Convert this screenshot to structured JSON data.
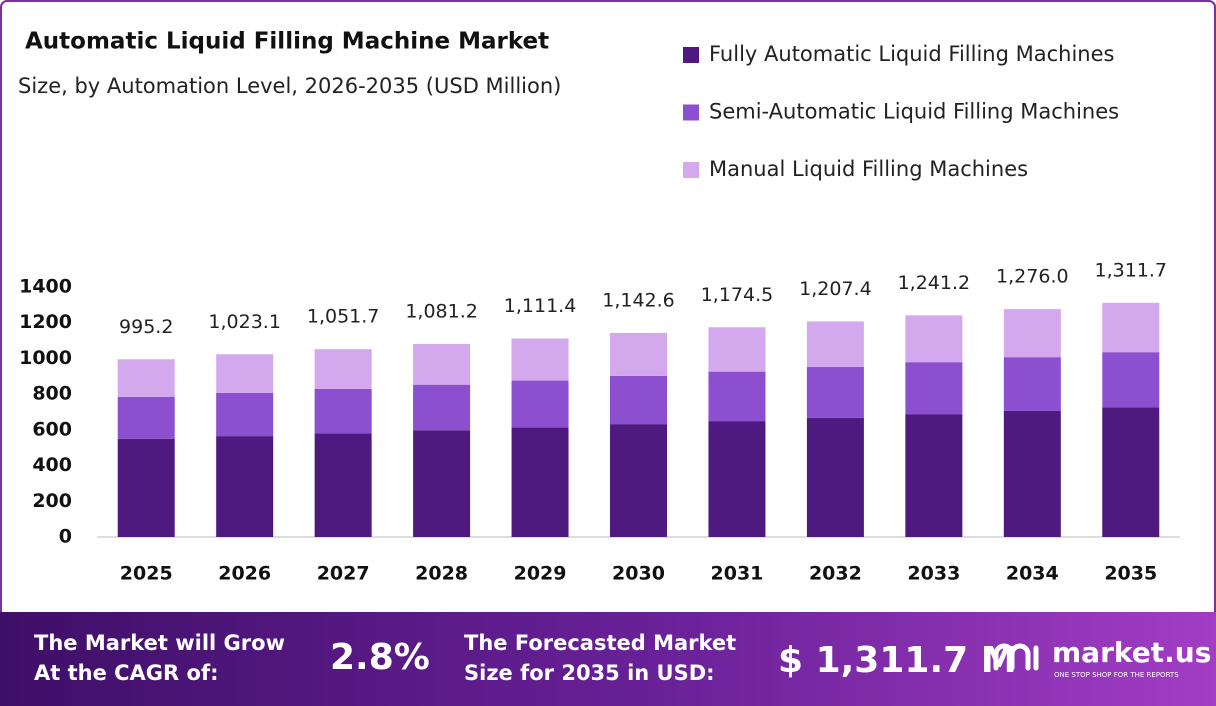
{
  "chart_data": {
    "type": "stacked-bar",
    "title": "Automatic Liquid Filling Machine Market",
    "subtitle": "Size, by Automation Level, 2026-2035 (USD Million)",
    "categories": [
      "2025",
      "2026",
      "2027",
      "2028",
      "2029",
      "2030",
      "2031",
      "2032",
      "2033",
      "2034",
      "2035"
    ],
    "series": [
      {
        "name": "Fully Automatic Liquid Filling Machines",
        "color": "#4e1a80",
        "values": [
          550,
          565,
          581,
          598,
          614,
          632,
          649,
          668,
          686,
          706,
          725
        ]
      },
      {
        "name": "Semi-Automatic Liquid Filling Machines",
        "color": "#8c4fd0",
        "values": [
          235,
          242,
          248,
          255,
          262,
          270,
          277,
          285,
          293,
          301,
          310
        ]
      },
      {
        "name": "Manual Liquid Filling Machines",
        "color": "#d3a8ec",
        "values": [
          210.2,
          216.1,
          222.7,
          228.2,
          235.4,
          240.6,
          248.5,
          254.4,
          262.2,
          269.0,
          276.7
        ]
      }
    ],
    "totals": {
      "values": [
        995.2,
        1023.1,
        1051.7,
        1081.2,
        1111.4,
        1142.6,
        1174.5,
        1207.4,
        1241.2,
        1276.0,
        1311.7
      ],
      "value_labels": [
        "995.2",
        "1,023.1",
        "1,051.7",
        "1,081.2",
        "1,111.4",
        "1,142.6",
        "1,174.5",
        "1,207.4",
        "1,241.2",
        "1,276.0",
        "1,311.7"
      ]
    },
    "ylim": [
      0,
      1400
    ],
    "yticks": [
      0,
      200,
      400,
      600,
      800,
      1000,
      1200,
      1400
    ],
    "grid": false,
    "legend": "top-right"
  },
  "footer": {
    "cagr_text": [
      "The Market will Grow",
      "At the CAGR of:"
    ],
    "cagr_value": "2.8%",
    "forecast_text": [
      "The Forecasted Market",
      "Size for 2035 in USD:"
    ],
    "forecast_value": "$ 1,311.7 M",
    "brand": "market.us",
    "tagline": "ONE STOP SHOP FOR THE REPORTS"
  }
}
